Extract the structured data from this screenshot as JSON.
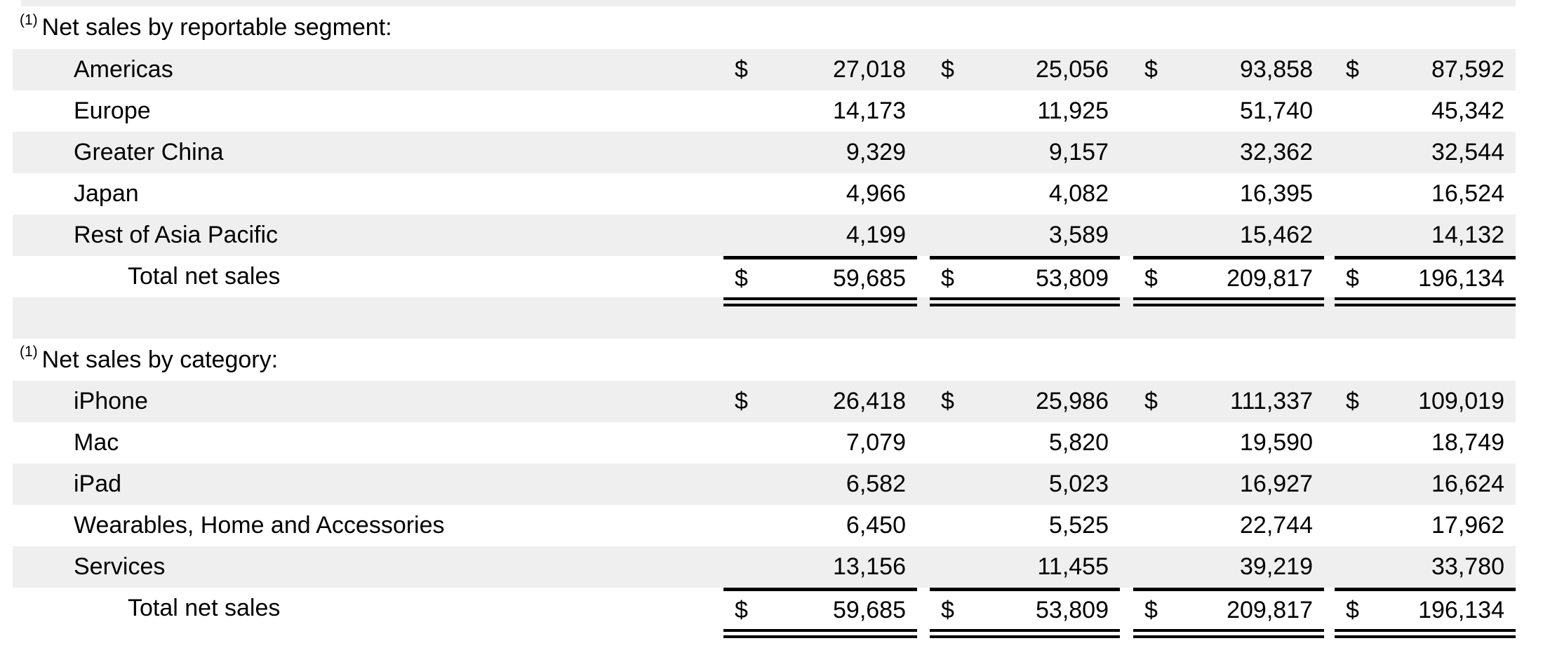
{
  "styles": {
    "stripe_color": "#efefef",
    "text_color": "#000000"
  },
  "currency_symbol": "$",
  "sections": [
    {
      "heading": {
        "superscript": "(1)",
        "text": "Net sales by reportable segment:"
      },
      "rows": [
        {
          "label": "Americas",
          "shaded": true,
          "dollar": true,
          "values": [
            "27,018",
            "25,056",
            "93,858",
            "87,592"
          ]
        },
        {
          "label": "Europe",
          "shaded": false,
          "dollar": false,
          "values": [
            "14,173",
            "11,925",
            "51,740",
            "45,342"
          ]
        },
        {
          "label": "Greater China",
          "shaded": true,
          "dollar": false,
          "values": [
            "9,329",
            "9,157",
            "32,362",
            "32,544"
          ]
        },
        {
          "label": "Japan",
          "shaded": false,
          "dollar": false,
          "values": [
            "4,966",
            "4,082",
            "16,395",
            "16,524"
          ]
        },
        {
          "label": "Rest of Asia Pacific",
          "shaded": true,
          "dollar": false,
          "values": [
            "4,199",
            "3,589",
            "15,462",
            "14,132"
          ]
        }
      ],
      "total_row": {
        "label": "Total net sales",
        "shaded": false,
        "dollar": true,
        "values": [
          "59,685",
          "53,809",
          "209,817",
          "196,134"
        ]
      }
    },
    {
      "heading": {
        "superscript": "(1)",
        "text": "Net sales by category:"
      },
      "rows": [
        {
          "label": "iPhone",
          "shaded": true,
          "dollar": true,
          "values": [
            "26,418",
            "25,986",
            "111,337",
            "109,019"
          ]
        },
        {
          "label": "Mac",
          "shaded": false,
          "dollar": false,
          "values": [
            "7,079",
            "5,820",
            "19,590",
            "18,749"
          ]
        },
        {
          "label": "iPad",
          "shaded": true,
          "dollar": false,
          "values": [
            "6,582",
            "5,023",
            "16,927",
            "16,624"
          ]
        },
        {
          "label": "Wearables, Home and Accessories",
          "shaded": false,
          "dollar": false,
          "values": [
            "6,450",
            "5,525",
            "22,744",
            "17,962"
          ]
        },
        {
          "label": "Services",
          "shaded": true,
          "dollar": false,
          "values": [
            "13,156",
            "11,455",
            "39,219",
            "33,780"
          ]
        }
      ],
      "total_row": {
        "label": "Total net sales",
        "shaded": false,
        "dollar": true,
        "values": [
          "59,685",
          "53,809",
          "209,817",
          "196,134"
        ]
      }
    }
  ]
}
